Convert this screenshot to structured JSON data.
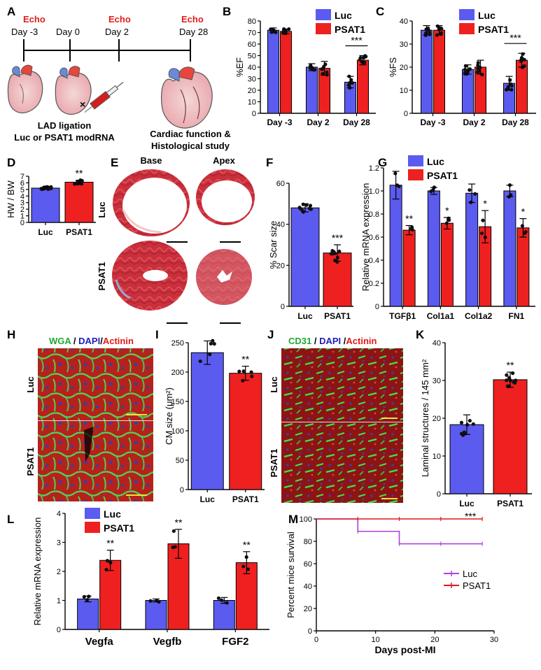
{
  "colors": {
    "luc": "#5b5bf0",
    "psat1": "#ef2020",
    "echo": "#e11d1d",
    "luc_line": "#b040e0",
    "psat1_line": "#e01818",
    "tissue": "#c9303c",
    "micro_bg": "#9a1a1a"
  },
  "panel_letters": [
    "A",
    "B",
    "C",
    "D",
    "E",
    "F",
    "G",
    "H",
    "I",
    "J",
    "K",
    "L",
    "M"
  ],
  "timeline": {
    "echo_labels": [
      "Echo",
      "Echo",
      "Echo"
    ],
    "days": [
      "Day -3",
      "Day 0",
      "Day 2",
      "Day 28"
    ],
    "caption_left_1": "LAD ligation",
    "caption_left_2": "Luc or PSAT1 modRNA",
    "caption_right_1": "Cardiac function &",
    "caption_right_2": "Histological study"
  },
  "legend": {
    "luc": "Luc",
    "psat1": "PSAT1"
  },
  "histology": {
    "base": "Base",
    "apex": "Apex",
    "luc": "Luc",
    "psat1": "PSAT1",
    "wga_title": [
      "WGA",
      " / ",
      "DAPI",
      "/",
      "Actinin"
    ],
    "cd31_title": [
      "CD31",
      " / ",
      "DAPI",
      " /",
      "Actinin"
    ]
  },
  "chart_data": [
    {
      "id": "B",
      "type": "bar",
      "ylabel": "%EF",
      "categories": [
        "Day -3",
        "Day 2",
        "Day 28"
      ],
      "ylim": [
        0,
        80
      ],
      "yticks": [
        0,
        10,
        20,
        30,
        40,
        50,
        60,
        70,
        80
      ],
      "series": [
        {
          "name": "Luc",
          "values": [
            72,
            40,
            27
          ]
        },
        {
          "name": "PSAT1",
          "values": [
            71,
            39,
            46
          ]
        }
      ],
      "errors": [
        [
          2,
          3,
          5
        ],
        [
          2,
          6,
          4
        ]
      ],
      "annotations": [
        {
          "category": "Day 28",
          "text": "***"
        }
      ]
    },
    {
      "id": "C",
      "type": "bar",
      "ylabel": "%FS",
      "categories": [
        "Day -3",
        "Day 2",
        "Day 28"
      ],
      "ylim": [
        0,
        40
      ],
      "yticks": [
        0,
        10,
        20,
        30,
        40
      ],
      "series": [
        {
          "name": "Luc",
          "values": [
            36,
            19,
            13
          ]
        },
        {
          "name": "PSAT1",
          "values": [
            36,
            20,
            23
          ]
        }
      ],
      "errors": [
        [
          2,
          2,
          3
        ],
        [
          2,
          3,
          3
        ]
      ],
      "annotations": [
        {
          "category": "Day 28",
          "text": "***"
        }
      ]
    },
    {
      "id": "D",
      "type": "bar",
      "ylabel": "HW / BW",
      "categories": [
        "Luc",
        "PSAT1"
      ],
      "ylim": [
        0,
        7
      ],
      "yticks": [
        0,
        1,
        2,
        3,
        4,
        5,
        6,
        7
      ],
      "values": [
        5.2,
        6.1
      ],
      "errors": [
        0.2,
        0.3
      ],
      "annotation": "**"
    },
    {
      "id": "F",
      "type": "bar",
      "ylabel": "% Scar size",
      "categories": [
        "Luc",
        "PSAT1"
      ],
      "ylim": [
        0,
        60
      ],
      "yticks": [
        0,
        20,
        40,
        60
      ],
      "values": [
        48,
        26
      ],
      "errors": [
        2,
        4
      ],
      "annotation": "***"
    },
    {
      "id": "G",
      "type": "bar",
      "ylabel": "Relative mRNA expression",
      "categories": [
        "TGFβ1",
        "Col1a1",
        "Col1a2",
        "FN1"
      ],
      "ylim": [
        0,
        1.2
      ],
      "yticks": [
        0,
        0.2,
        0.4,
        0.6,
        0.8,
        1.0,
        1.2
      ],
      "ytick_labels": [
        "0",
        "0.2",
        "0.4",
        "0.6",
        "0.8",
        "1.0",
        "1.2"
      ],
      "series": [
        {
          "name": "Luc",
          "values": [
            1.05,
            1.0,
            0.98,
            1.0
          ]
        },
        {
          "name": "PSAT1",
          "values": [
            0.66,
            0.72,
            0.69,
            0.68
          ]
        }
      ],
      "errors": [
        [
          0.12,
          0.03,
          0.08,
          0.05
        ],
        [
          0.04,
          0.05,
          0.14,
          0.08
        ]
      ],
      "annotations": [
        "**",
        "*",
        "*",
        "*"
      ]
    },
    {
      "id": "I",
      "type": "bar",
      "ylabel": "CM size (μm²)",
      "categories": [
        "Luc",
        "PSAT1"
      ],
      "ylim": [
        0,
        250
      ],
      "yticks": [
        0,
        50,
        100,
        150,
        200,
        250
      ],
      "values": [
        233,
        198
      ],
      "errors": [
        20,
        12
      ],
      "annotation": "**"
    },
    {
      "id": "K",
      "type": "bar",
      "ylabel": "Laminal structures / 145 mm²",
      "categories": [
        "Luc",
        "PSAT1"
      ],
      "ylim": [
        0,
        40
      ],
      "yticks": [
        0,
        10,
        20,
        30,
        40
      ],
      "values": [
        18.3,
        30.2
      ],
      "errors": [
        2.6,
        2.0
      ],
      "annotation": "**"
    },
    {
      "id": "L",
      "type": "bar",
      "ylabel": "Relative mRNA expression",
      "categories": [
        "Vegfa",
        "Vegfb",
        "FGF2"
      ],
      "ylim": [
        0,
        4
      ],
      "yticks": [
        0,
        1,
        2,
        3,
        4
      ],
      "series": [
        {
          "name": "Luc",
          "values": [
            1.05,
            1.0,
            1.0
          ]
        },
        {
          "name": "PSAT1",
          "values": [
            2.38,
            2.95,
            2.3
          ]
        }
      ],
      "errors": [
        [
          0.1,
          0.05,
          0.1
        ],
        [
          0.35,
          0.5,
          0.38
        ]
      ],
      "annotations": [
        "**",
        "**",
        "**"
      ]
    },
    {
      "id": "M",
      "type": "line",
      "title": "",
      "xlabel": "Days post-MI",
      "ylabel": "Percent mice survival",
      "xlim": [
        0,
        30
      ],
      "xticks": [
        0,
        10,
        20,
        30
      ],
      "ylim": [
        0,
        100
      ],
      "yticks": [
        0,
        20,
        40,
        60,
        80,
        100
      ],
      "series": [
        {
          "name": "Luc",
          "x": [
            0,
            7,
            7,
            14,
            14,
            28
          ],
          "y": [
            100,
            100,
            88.9,
            88.9,
            77.8,
            77.8
          ]
        },
        {
          "name": "PSAT1",
          "x": [
            0,
            28
          ],
          "y": [
            100,
            100
          ]
        }
      ],
      "annotation": "***"
    }
  ]
}
